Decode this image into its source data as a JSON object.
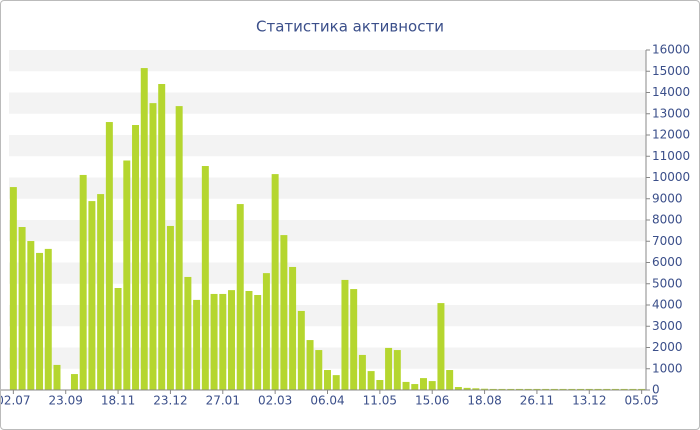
{
  "chart_data": {
    "type": "bar",
    "title": "Статистика активности",
    "categories": [
      "02.07",
      null,
      null,
      null,
      null,
      null,
      "23.09",
      null,
      null,
      null,
      null,
      null,
      "18.11",
      null,
      null,
      null,
      null,
      null,
      "23.12",
      null,
      null,
      null,
      null,
      null,
      "27.01",
      null,
      null,
      null,
      null,
      null,
      "02.03",
      null,
      null,
      null,
      null,
      null,
      "06.04",
      null,
      null,
      null,
      null,
      null,
      "11.05",
      null,
      null,
      null,
      null,
      null,
      "15.06",
      null,
      null,
      null,
      null,
      null,
      "18.08",
      null,
      null,
      null,
      null,
      null,
      "26.11",
      null,
      null,
      null,
      null,
      null,
      "13.12",
      null,
      null,
      null,
      null,
      null,
      "05.05"
    ],
    "values": [
      9550,
      7670,
      7010,
      6450,
      6640,
      1180,
      0,
      750,
      10120,
      8890,
      9220,
      12610,
      4800,
      10800,
      12470,
      15150,
      13500,
      14400,
      7720,
      13360,
      5320,
      4240,
      10540,
      4520,
      4520,
      4700,
      8750,
      4660,
      4470,
      5500,
      10160,
      7290,
      5790,
      3720,
      2350,
      1880,
      940,
      700,
      5180,
      4750,
      1650,
      890,
      470,
      1980,
      1880,
      380,
      280,
      560,
      420,
      4090,
      940,
      140,
      100,
      80,
      60,
      50,
      50,
      50,
      50,
      50,
      50,
      50,
      50,
      50,
      50,
      50,
      50,
      50,
      50,
      50,
      50,
      50,
      50
    ],
    "color": "#b5d62f",
    "ylim": [
      0,
      16000
    ],
    "yticks": [
      0,
      1000,
      2000,
      3000,
      4000,
      5000,
      6000,
      7000,
      8000,
      9000,
      10000,
      11000,
      12000,
      13000,
      14000,
      15000,
      16000
    ],
    "grid": true
  }
}
